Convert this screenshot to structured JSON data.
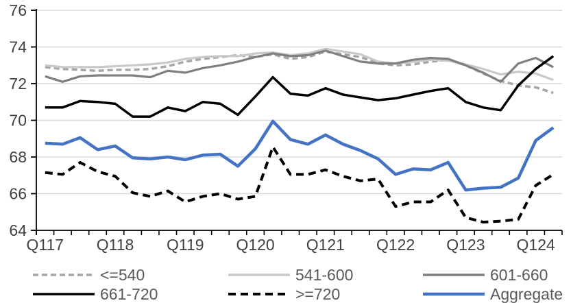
{
  "chart_data": {
    "type": "line",
    "title": "",
    "xlabel": "",
    "ylabel": "",
    "n_points": 30,
    "x_tick_labels": [
      "Q117",
      "Q118",
      "Q119",
      "Q120",
      "Q121",
      "Q122",
      "Q123",
      "Q124"
    ],
    "x_label_positions": [
      0,
      4,
      8,
      12,
      16,
      20,
      24,
      28
    ],
    "ylim": [
      64,
      76
    ],
    "y_ticks": [
      64,
      66,
      68,
      70,
      72,
      74,
      76
    ],
    "grid": true,
    "legend_position": "bottom",
    "series": [
      {
        "name": "<=540",
        "color": "#a6a6a6",
        "dash": "8 5",
        "width": 3.5,
        "values": [
          72.9,
          72.8,
          72.75,
          72.7,
          72.75,
          72.75,
          72.8,
          72.95,
          73.2,
          73.35,
          73.45,
          73.55,
          73.45,
          73.6,
          73.35,
          73.45,
          73.75,
          73.6,
          73.45,
          73.1,
          73.0,
          73.05,
          73.2,
          73.3,
          73.0,
          72.55,
          72.15,
          71.9,
          71.8,
          71.5
        ]
      },
      {
        "name": "541-600",
        "color": "#c9c9c9",
        "dash": null,
        "width": 3.2,
        "values": [
          73.0,
          72.9,
          72.9,
          72.9,
          72.95,
          73.0,
          73.05,
          73.15,
          73.35,
          73.45,
          73.5,
          73.5,
          73.65,
          73.7,
          73.55,
          73.65,
          73.9,
          73.75,
          73.6,
          73.2,
          73.1,
          73.2,
          73.3,
          73.25,
          73.05,
          72.8,
          72.5,
          72.65,
          72.55,
          72.2
        ]
      },
      {
        "name": "601-660",
        "color": "#7f7f7f",
        "dash": null,
        "width": 3.2,
        "values": [
          72.4,
          72.1,
          72.4,
          72.45,
          72.45,
          72.45,
          72.35,
          72.7,
          72.6,
          72.85,
          73.0,
          73.2,
          73.45,
          73.65,
          73.5,
          73.55,
          73.8,
          73.5,
          73.2,
          73.1,
          73.1,
          73.3,
          73.4,
          73.35,
          73.0,
          72.6,
          72.1,
          73.1,
          73.4,
          72.9
        ]
      },
      {
        "name": "661-720",
        "color": "#000000",
        "dash": null,
        "width": 3.5,
        "values": [
          70.7,
          70.7,
          71.05,
          71.0,
          70.9,
          70.2,
          70.2,
          70.7,
          70.5,
          71.0,
          70.9,
          70.3,
          71.3,
          72.35,
          71.45,
          71.35,
          71.75,
          71.4,
          71.25,
          71.1,
          71.2,
          71.4,
          71.6,
          71.75,
          71.0,
          70.7,
          70.55,
          71.9,
          72.8,
          73.5
        ]
      },
      {
        "name": ">=720",
        "color": "#000000",
        "dash": "11 7",
        "width": 4,
        "values": [
          67.15,
          67.05,
          67.7,
          67.2,
          66.95,
          66.05,
          65.85,
          66.15,
          65.55,
          65.85,
          66.0,
          65.7,
          65.85,
          68.55,
          67.05,
          67.05,
          67.3,
          66.95,
          66.7,
          66.8,
          65.3,
          65.55,
          65.55,
          66.2,
          64.7,
          64.45,
          64.5,
          64.6,
          66.45,
          67.05
        ]
      },
      {
        "name": "Aggregate",
        "color": "#4472c4",
        "dash": null,
        "width": 4.5,
        "values": [
          68.75,
          68.7,
          69.05,
          68.4,
          68.6,
          67.95,
          67.9,
          68.0,
          67.85,
          68.1,
          68.15,
          67.5,
          68.45,
          69.95,
          68.95,
          68.7,
          69.2,
          68.7,
          68.35,
          67.9,
          67.05,
          67.35,
          67.3,
          67.7,
          66.2,
          66.3,
          66.35,
          66.85,
          68.9,
          69.6
        ]
      }
    ],
    "colors": {
      "grid": "#d9d9d9",
      "axis": "#000000",
      "tick_label": "#404040",
      "legend_text": "#595959",
      "background": "#ffffff"
    }
  }
}
